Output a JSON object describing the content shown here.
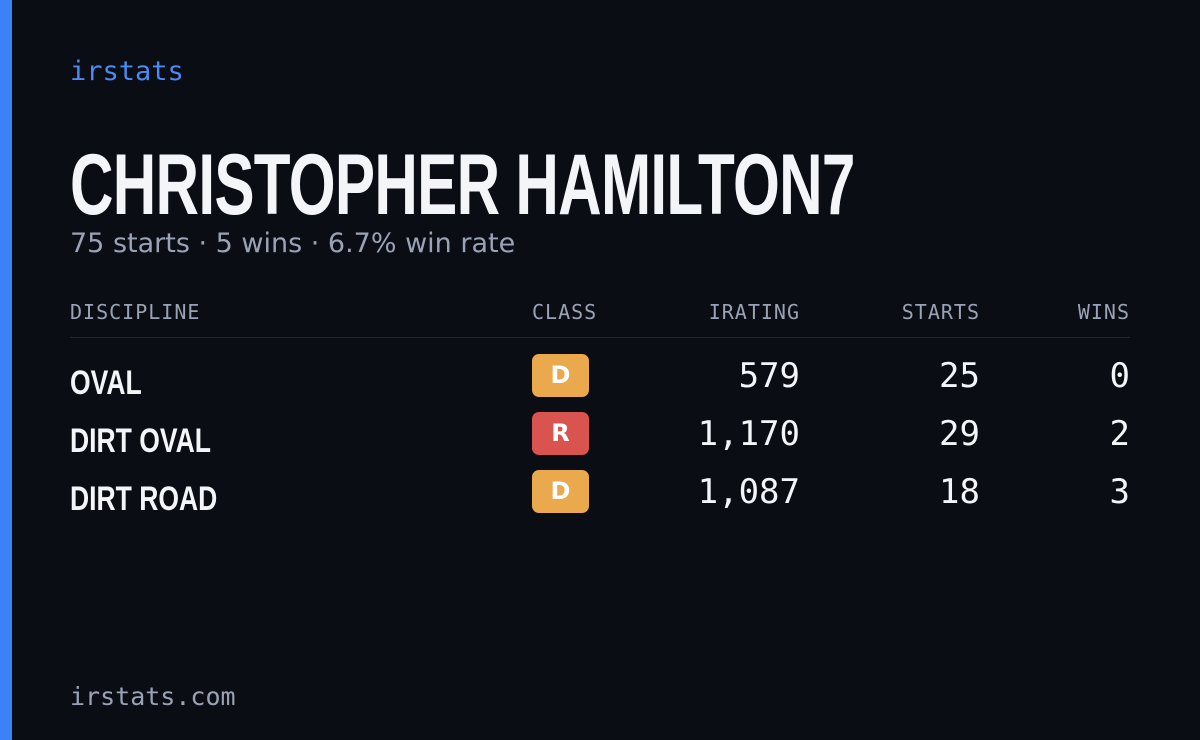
{
  "brand": "irstats",
  "title": "CHRISTOPHER HAMILTON7",
  "subtitle": "75 starts · 5 wins · 6.7% win rate",
  "table": {
    "headers": [
      "DISCIPLINE",
      "CLASS",
      "IRATING",
      "STARTS",
      "WINS"
    ],
    "rows": [
      [
        "OVAL",
        "D",
        "579",
        "25",
        "0"
      ],
      [
        "DIRT OVAL",
        "R",
        "1,170",
        "29",
        "2"
      ],
      [
        "DIRT ROAD",
        "D",
        "1,087",
        "18",
        "3"
      ]
    ],
    "class_colors": {
      "D": "#e9a94c",
      "R": "#d9534f"
    }
  },
  "footer": "irstats.com"
}
